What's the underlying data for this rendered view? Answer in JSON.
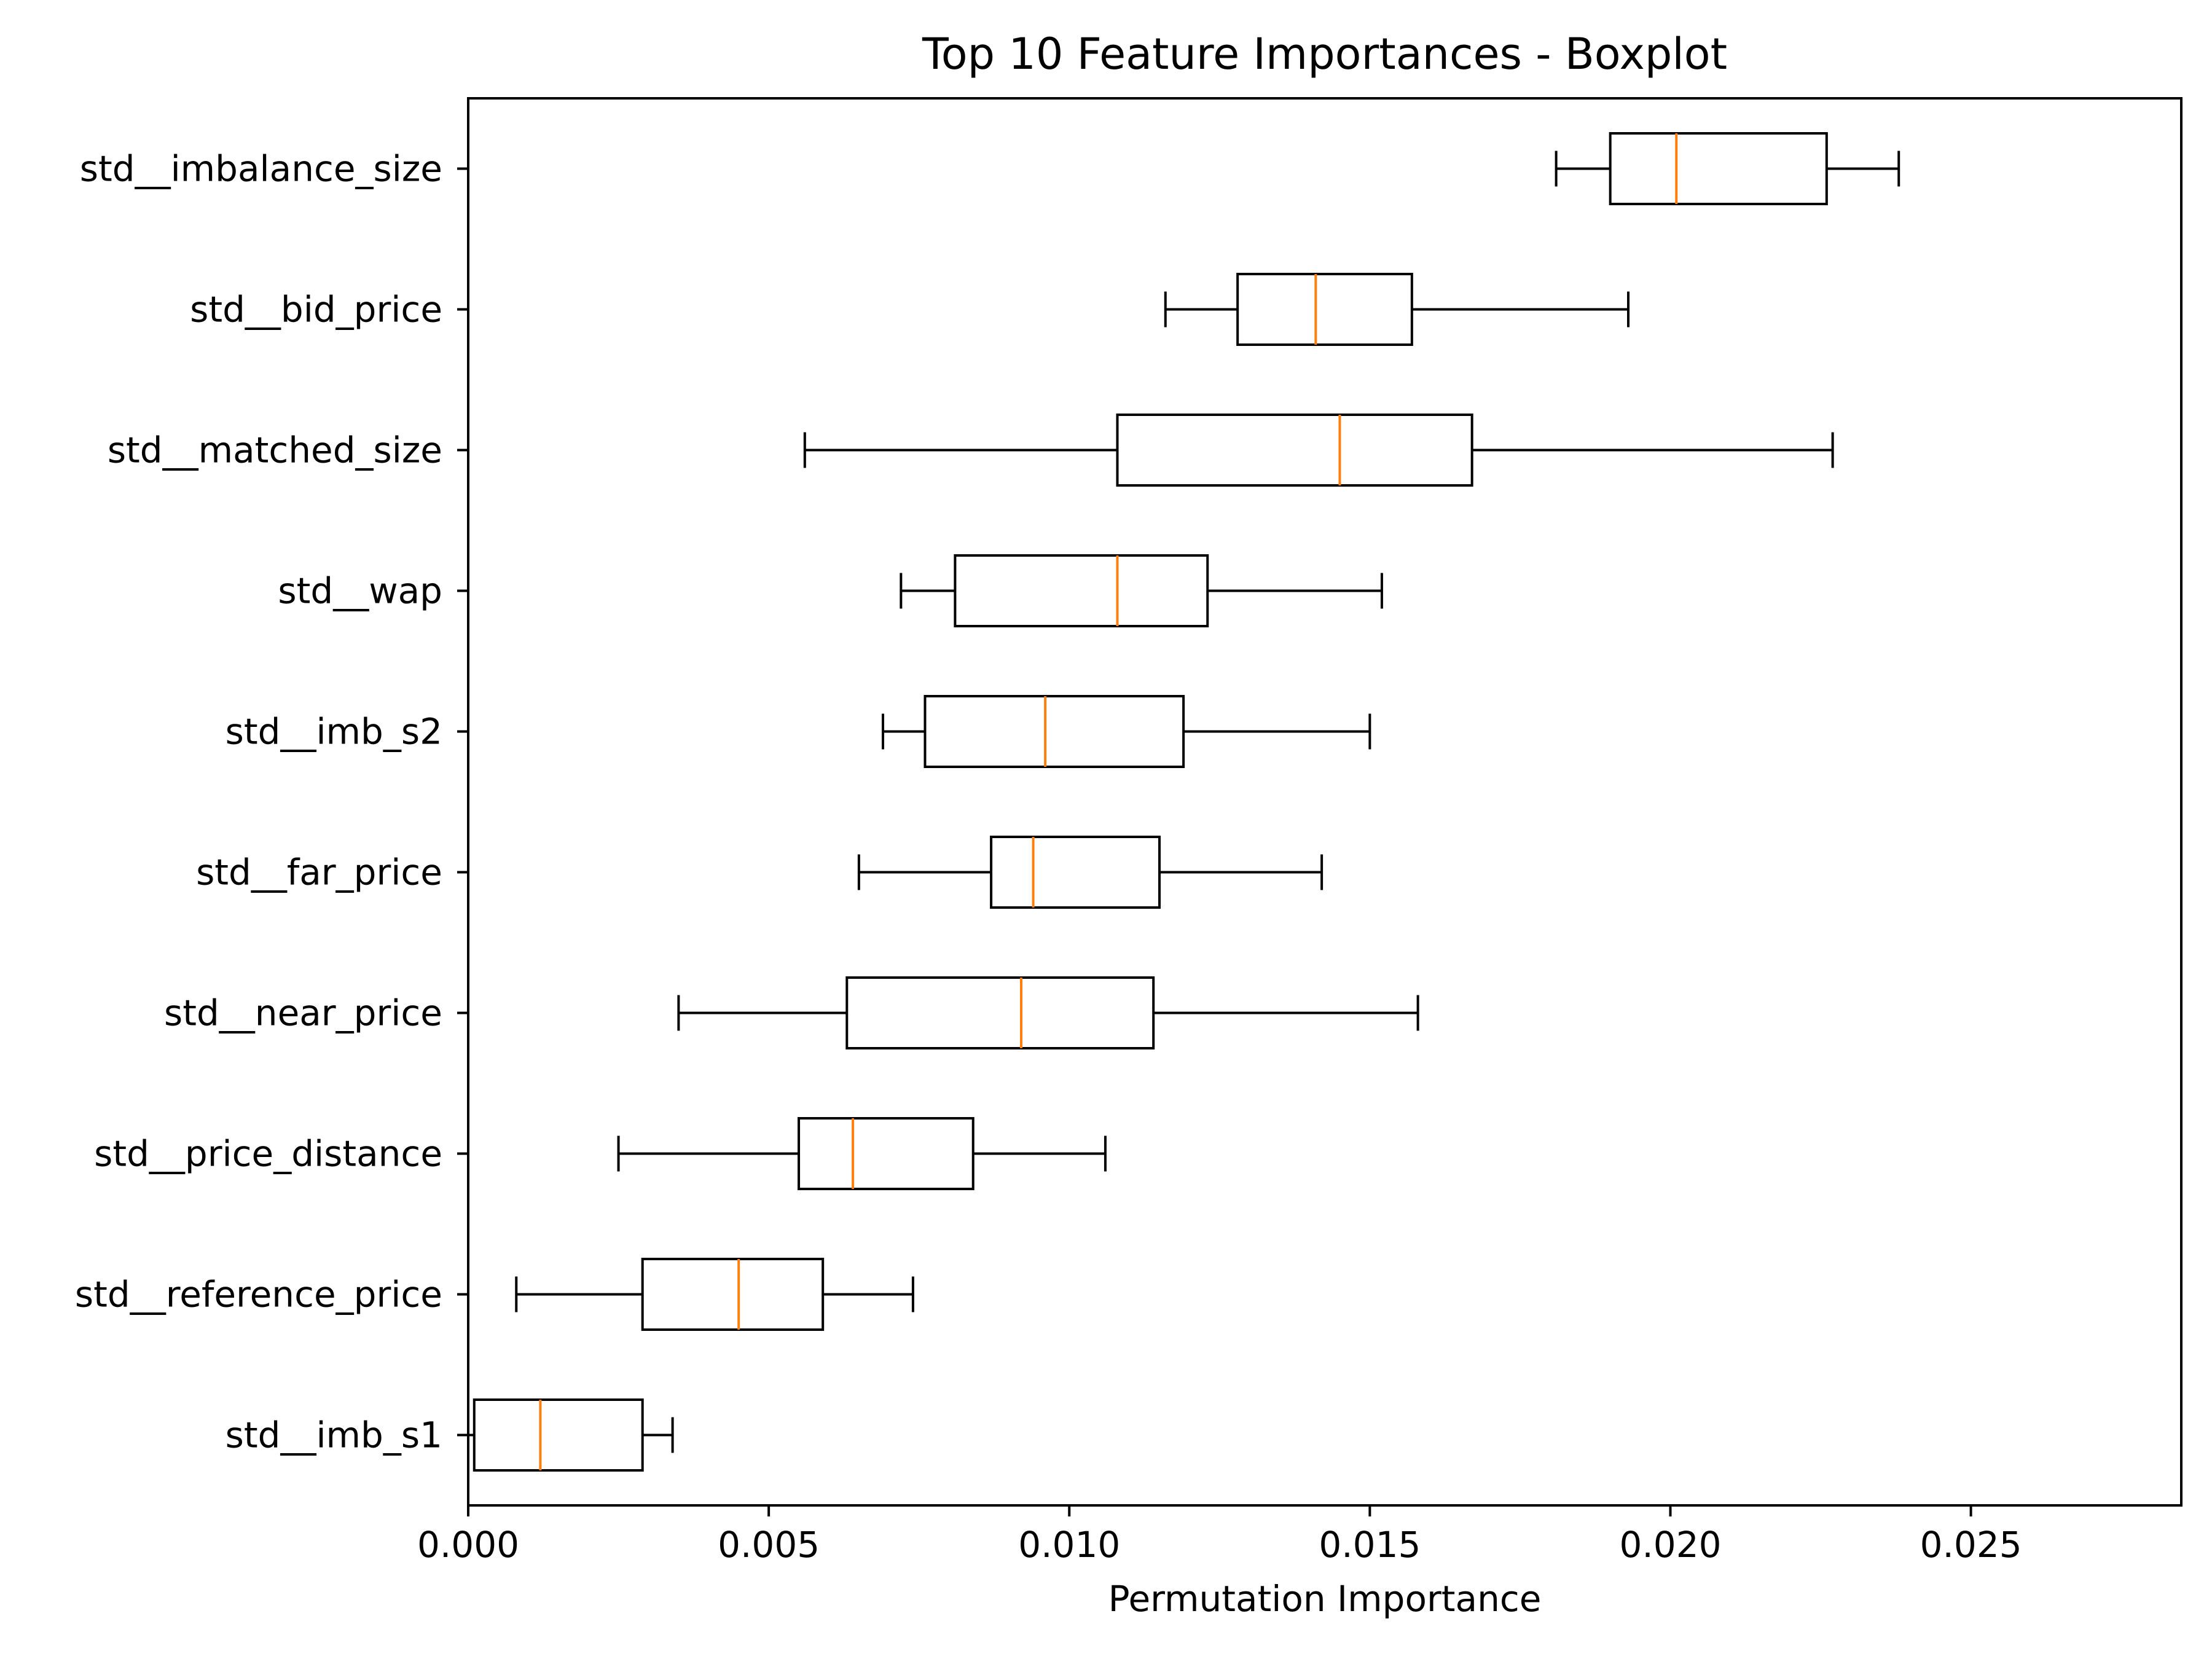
{
  "chart_data": {
    "type": "boxplot",
    "orientation": "horizontal",
    "title": "Top 10 Feature Importances - Boxplot",
    "xlabel": "Permutation Importance",
    "ylabel": "",
    "xlim": [
      0,
      0.0285
    ],
    "xticks": [
      0.0,
      0.005,
      0.01,
      0.015,
      0.02,
      0.025
    ],
    "xtick_labels": [
      "0.000",
      "0.005",
      "0.010",
      "0.015",
      "0.020",
      "0.025"
    ],
    "grid": false,
    "colors": {
      "box": "#000000",
      "median": "#ff7f0e",
      "background": "#ffffff"
    },
    "features": [
      {
        "name": "std__imbalance_size",
        "whislo": 0.0181,
        "q1": 0.019,
        "median": 0.0201,
        "q3": 0.0226,
        "whishi": 0.0238
      },
      {
        "name": "std__bid_price",
        "whislo": 0.0116,
        "q1": 0.0128,
        "median": 0.0141,
        "q3": 0.0157,
        "whishi": 0.0193
      },
      {
        "name": "std__matched_size",
        "whislo": 0.0056,
        "q1": 0.0108,
        "median": 0.0145,
        "q3": 0.0167,
        "whishi": 0.0227
      },
      {
        "name": "std__wap",
        "whislo": 0.0072,
        "q1": 0.0081,
        "median": 0.0108,
        "q3": 0.0123,
        "whishi": 0.0152
      },
      {
        "name": "std__imb_s2",
        "whislo": 0.0069,
        "q1": 0.0076,
        "median": 0.0096,
        "q3": 0.0119,
        "whishi": 0.015
      },
      {
        "name": "std__far_price",
        "whislo": 0.0065,
        "q1": 0.0087,
        "median": 0.0094,
        "q3": 0.0115,
        "whishi": 0.0142
      },
      {
        "name": "std__near_price",
        "whislo": 0.0035,
        "q1": 0.0063,
        "median": 0.0092,
        "q3": 0.0114,
        "whishi": 0.0158
      },
      {
        "name": "std__price_distance",
        "whislo": 0.0025,
        "q1": 0.0055,
        "median": 0.0064,
        "q3": 0.0084,
        "whishi": 0.0106
      },
      {
        "name": "std__reference_price",
        "whislo": 0.0008,
        "q1": 0.0029,
        "median": 0.0045,
        "q3": 0.0059,
        "whishi": 0.0074
      },
      {
        "name": "std__imb_s1",
        "whislo": 0.0,
        "q1": 0.0001,
        "median": 0.0012,
        "q3": 0.0029,
        "whishi": 0.0034
      }
    ]
  }
}
